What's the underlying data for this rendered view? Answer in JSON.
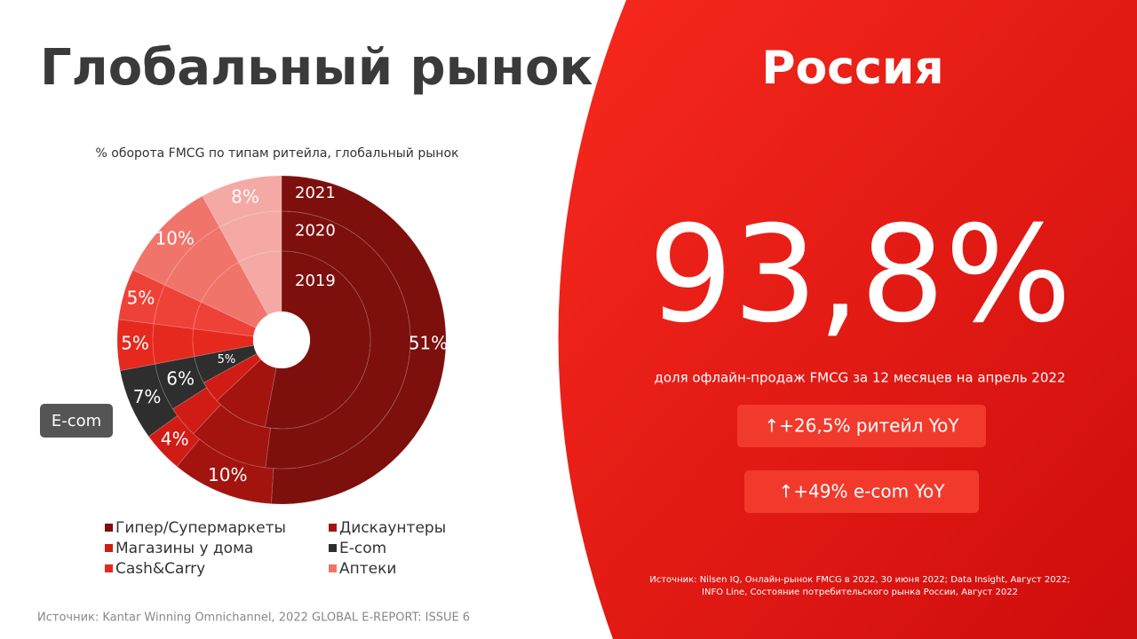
{
  "left": {
    "title": "Глобальный рынок",
    "badge": "E-com",
    "source": "Источник: Kantar Winning Omnichannel, 2022 GLOBAL E-REPORT: ISSUE 6"
  },
  "chart_data": {
    "type": "pie",
    "subtitle": "% оборота FMCG по типам ритейла, глобальный рынок",
    "categories": [
      "Гипер/Супермаркеты",
      "Дискаунтеры",
      "Магазины у дома",
      "E-com",
      "Cash&Carry",
      null,
      "Аптеки",
      null
    ],
    "colors": [
      "#7d0f0c",
      "#a3140f",
      "#d01c15",
      "#2e2e2e",
      "#e5291f",
      "#ee4238",
      "#f1746b",
      "#f4a9a4"
    ],
    "series": [
      {
        "name": "2021",
        "values": [
          51,
          10,
          4,
          7,
          5,
          5,
          10,
          8
        ],
        "value_labels": [
          "51%",
          "10%",
          "4%",
          "7%",
          "5%",
          "5%",
          "10%",
          "8%"
        ]
      },
      {
        "name": "2020",
        "values": [
          52,
          10,
          4,
          6,
          5,
          5,
          10,
          8
        ],
        "value_labels": [
          null,
          null,
          null,
          "6%",
          null,
          null,
          null,
          null
        ]
      },
      {
        "name": "2019",
        "values": [
          53,
          10,
          4,
          5,
          5,
          5,
          10,
          8
        ],
        "value_labels": [
          null,
          null,
          null,
          "5%",
          null,
          null,
          null,
          null
        ]
      }
    ]
  },
  "right": {
    "title": "Россия",
    "big": "93,8%",
    "caption": "доля офлайн-продаж FMCG  за 12 месяцев на апрель 2022",
    "pills": [
      "↑+26,5% ритейл YoY",
      "↑+49% e-com YoY"
    ],
    "source": [
      "Источник: Nilsen IQ, Онлайн-рынок FMCG в 2022, 30 июня 2022; Data Insight, Август 2022;",
      "INFO Line, Состояние потребительского рынка России, Август 2022"
    ]
  }
}
